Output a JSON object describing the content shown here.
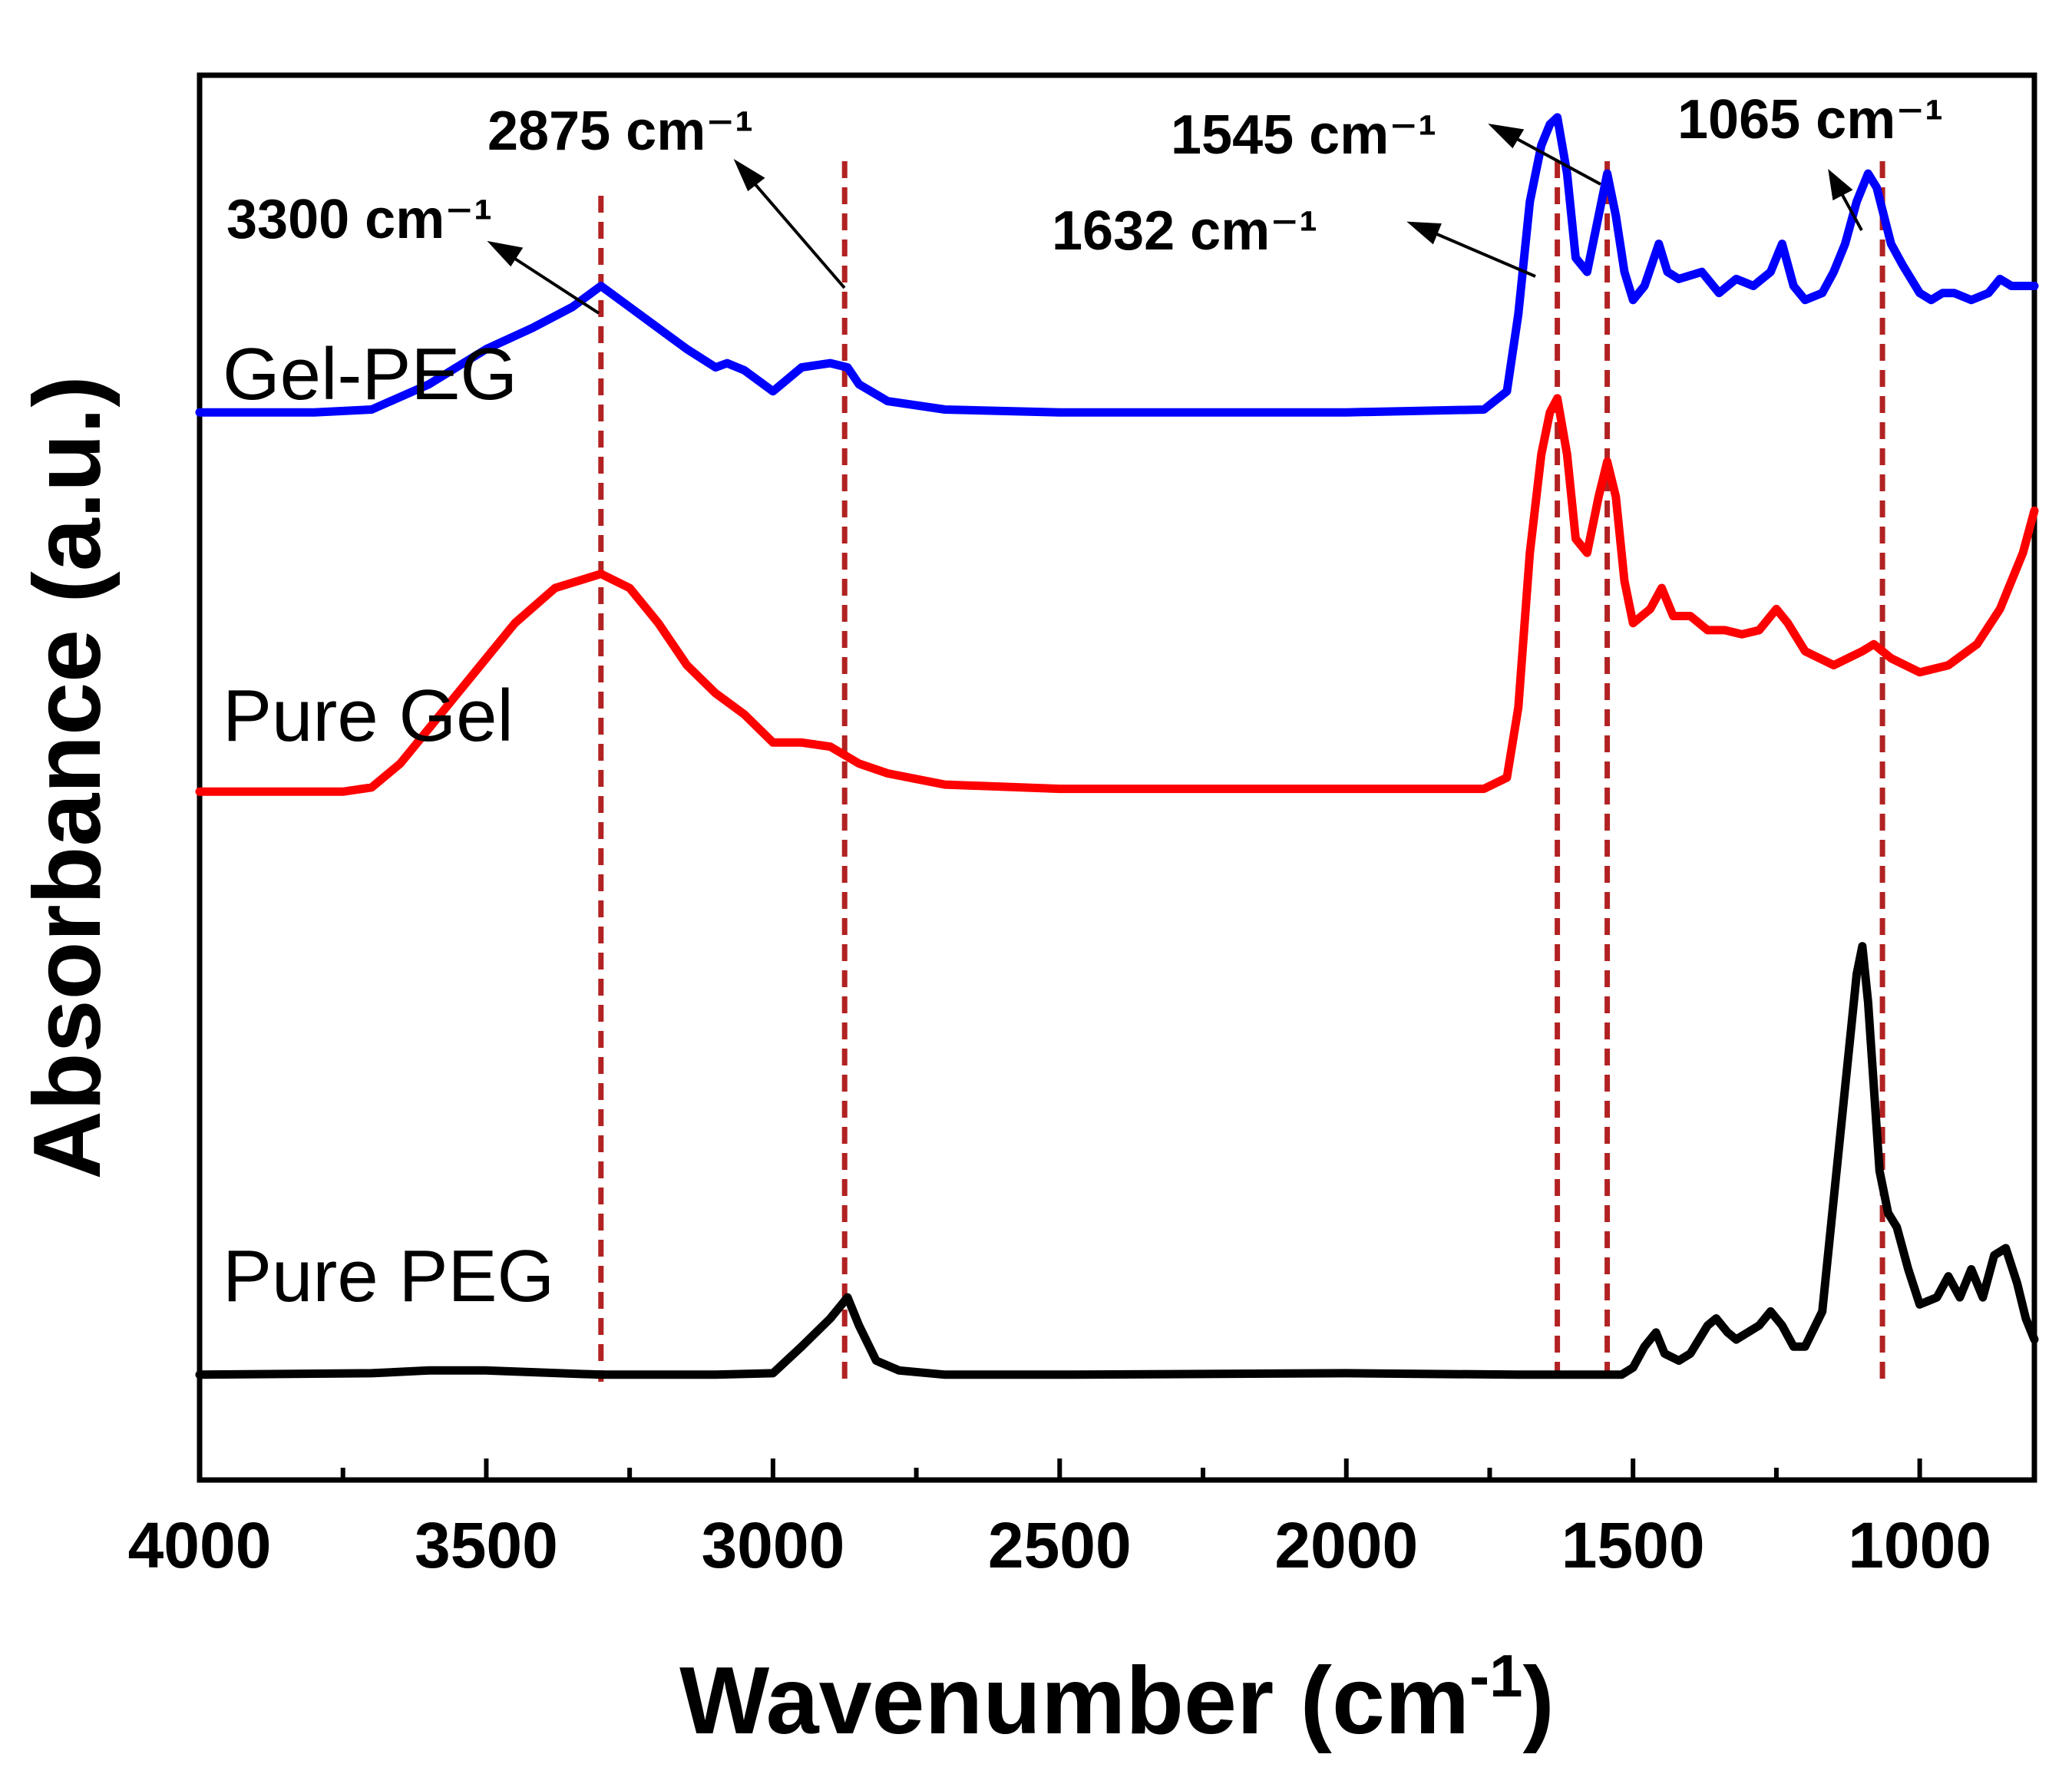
{
  "chart_data": {
    "type": "line",
    "title": "",
    "xlabel": "Wavenumber (cm-1)",
    "xlabel_main": "Wavenumber (cm",
    "xlabel_sup": "-1",
    "xlabel_close": ")",
    "ylabel": "Absorbance (a.u.)",
    "xlim": [
      4000,
      800
    ],
    "x_reversed": true,
    "ylim": [
      0,
      100
    ],
    "y_ticks_shown": false,
    "grid": false,
    "legend": "none (series labelled directly on the plot)",
    "x_ticks": [
      4000,
      3500,
      3000,
      2500,
      2000,
      1500,
      1000
    ],
    "x_tick_labels": [
      "4000",
      "3500",
      "3000",
      "2500",
      "2000",
      "1500",
      "1000"
    ],
    "series": [
      {
        "name": "Gel-PEG",
        "color": "#0000ff",
        "points": [
          [
            4000,
            76
          ],
          [
            3800,
            76
          ],
          [
            3700,
            76.2
          ],
          [
            3600,
            78
          ],
          [
            3500,
            80.5
          ],
          [
            3420,
            82
          ],
          [
            3350,
            83.5
          ],
          [
            3300,
            85
          ],
          [
            3250,
            83.5
          ],
          [
            3200,
            82
          ],
          [
            3150,
            80.5
          ],
          [
            3100,
            79.2
          ],
          [
            3080,
            79.5
          ],
          [
            3050,
            79
          ],
          [
            3000,
            77.5
          ],
          [
            2950,
            79.2
          ],
          [
            2900,
            79.5
          ],
          [
            2870,
            79.2
          ],
          [
            2850,
            78
          ],
          [
            2800,
            76.8
          ],
          [
            2700,
            76.2
          ],
          [
            2500,
            76
          ],
          [
            2000,
            76
          ],
          [
            1760,
            76.2
          ],
          [
            1720,
            77.5
          ],
          [
            1700,
            83
          ],
          [
            1680,
            91
          ],
          [
            1660,
            95
          ],
          [
            1645,
            96.5
          ],
          [
            1632,
            97
          ],
          [
            1615,
            93
          ],
          [
            1600,
            87
          ],
          [
            1580,
            86
          ],
          [
            1560,
            90
          ],
          [
            1545,
            93
          ],
          [
            1530,
            90
          ],
          [
            1515,
            86
          ],
          [
            1500,
            84
          ],
          [
            1480,
            85
          ],
          [
            1455,
            88
          ],
          [
            1440,
            86
          ],
          [
            1420,
            85.5
          ],
          [
            1380,
            86
          ],
          [
            1350,
            84.5
          ],
          [
            1320,
            85.5
          ],
          [
            1290,
            85
          ],
          [
            1260,
            86
          ],
          [
            1240,
            88
          ],
          [
            1220,
            85
          ],
          [
            1200,
            84
          ],
          [
            1170,
            84.5
          ],
          [
            1150,
            86
          ],
          [
            1130,
            88
          ],
          [
            1110,
            91
          ],
          [
            1090,
            93
          ],
          [
            1075,
            92
          ],
          [
            1050,
            88
          ],
          [
            1030,
            86.5
          ],
          [
            1000,
            84.5
          ],
          [
            980,
            84
          ],
          [
            960,
            84.5
          ],
          [
            940,
            84.5
          ],
          [
            910,
            84
          ],
          [
            880,
            84.5
          ],
          [
            860,
            85.5
          ],
          [
            840,
            85
          ],
          [
            800,
            85
          ]
        ]
      },
      {
        "name": "Pure Gel",
        "color": "#ff0000",
        "points": [
          [
            4000,
            49
          ],
          [
            3750,
            49
          ],
          [
            3700,
            49.3
          ],
          [
            3650,
            51
          ],
          [
            3550,
            56
          ],
          [
            3450,
            61
          ],
          [
            3380,
            63.5
          ],
          [
            3300,
            64.5
          ],
          [
            3250,
            63.5
          ],
          [
            3200,
            61
          ],
          [
            3150,
            58
          ],
          [
            3100,
            56
          ],
          [
            3050,
            54.5
          ],
          [
            3000,
            52.5
          ],
          [
            2950,
            52.5
          ],
          [
            2900,
            52.2
          ],
          [
            2850,
            51
          ],
          [
            2800,
            50.3
          ],
          [
            2700,
            49.5
          ],
          [
            2500,
            49.2
          ],
          [
            2000,
            49.2
          ],
          [
            1760,
            49.2
          ],
          [
            1720,
            50
          ],
          [
            1700,
            55
          ],
          [
            1680,
            66
          ],
          [
            1660,
            73
          ],
          [
            1645,
            76
          ],
          [
            1632,
            77
          ],
          [
            1615,
            73
          ],
          [
            1600,
            67
          ],
          [
            1580,
            66
          ],
          [
            1560,
            70
          ],
          [
            1545,
            72.5
          ],
          [
            1530,
            70
          ],
          [
            1515,
            64
          ],
          [
            1500,
            61
          ],
          [
            1470,
            62
          ],
          [
            1450,
            63.5
          ],
          [
            1430,
            61.5
          ],
          [
            1400,
            61.5
          ],
          [
            1370,
            60.5
          ],
          [
            1340,
            60.5
          ],
          [
            1310,
            60.2
          ],
          [
            1280,
            60.5
          ],
          [
            1250,
            62
          ],
          [
            1230,
            61
          ],
          [
            1200,
            59
          ],
          [
            1150,
            58
          ],
          [
            1100,
            59
          ],
          [
            1080,
            59.5
          ],
          [
            1050,
            58.5
          ],
          [
            1000,
            57.5
          ],
          [
            950,
            58
          ],
          [
            900,
            59.5
          ],
          [
            860,
            62
          ],
          [
            820,
            66
          ],
          [
            800,
            69
          ]
        ]
      },
      {
        "name": "Pure PEG",
        "color": "#000000",
        "points": [
          [
            4000,
            7.5
          ],
          [
            3700,
            7.6
          ],
          [
            3600,
            7.8
          ],
          [
            3500,
            7.8
          ],
          [
            3300,
            7.5
          ],
          [
            3100,
            7.5
          ],
          [
            3000,
            7.6
          ],
          [
            2950,
            9.5
          ],
          [
            2900,
            11.5
          ],
          [
            2870,
            13
          ],
          [
            2850,
            11
          ],
          [
            2820,
            8.5
          ],
          [
            2780,
            7.8
          ],
          [
            2700,
            7.5
          ],
          [
            2500,
            7.5
          ],
          [
            2000,
            7.6
          ],
          [
            1700,
            7.5
          ],
          [
            1520,
            7.5
          ],
          [
            1500,
            8
          ],
          [
            1480,
            9.5
          ],
          [
            1460,
            10.5
          ],
          [
            1445,
            9
          ],
          [
            1420,
            8.5
          ],
          [
            1400,
            9
          ],
          [
            1370,
            11
          ],
          [
            1355,
            11.5
          ],
          [
            1335,
            10.5
          ],
          [
            1320,
            10
          ],
          [
            1300,
            10.5
          ],
          [
            1280,
            11
          ],
          [
            1260,
            12
          ],
          [
            1240,
            11
          ],
          [
            1220,
            9.5
          ],
          [
            1200,
            9.5
          ],
          [
            1170,
            12
          ],
          [
            1150,
            20
          ],
          [
            1125,
            30
          ],
          [
            1110,
            36
          ],
          [
            1100,
            38
          ],
          [
            1090,
            34
          ],
          [
            1070,
            22
          ],
          [
            1055,
            19
          ],
          [
            1040,
            18
          ],
          [
            1020,
            15
          ],
          [
            1000,
            12.5
          ],
          [
            970,
            13
          ],
          [
            950,
            14.5
          ],
          [
            930,
            13
          ],
          [
            910,
            15
          ],
          [
            890,
            13
          ],
          [
            870,
            16
          ],
          [
            850,
            16.5
          ],
          [
            830,
            14
          ],
          [
            815,
            11.5
          ],
          [
            800,
            10
          ]
        ]
      }
    ],
    "series_labels": [
      "Gel-PEG",
      "Pure Gel",
      "Pure PEG"
    ],
    "markers": [
      {
        "x": 3300,
        "label": "3300 cm⁻¹"
      },
      {
        "x": 2875,
        "label": "2875 cm⁻¹"
      },
      {
        "x": 1632,
        "label": "1632 cm⁻¹"
      },
      {
        "x": 1545,
        "label": "1545 cm⁻¹"
      },
      {
        "x": 1065,
        "label": "1065 cm⁻¹"
      }
    ],
    "marker_line_color": "#b22222"
  }
}
